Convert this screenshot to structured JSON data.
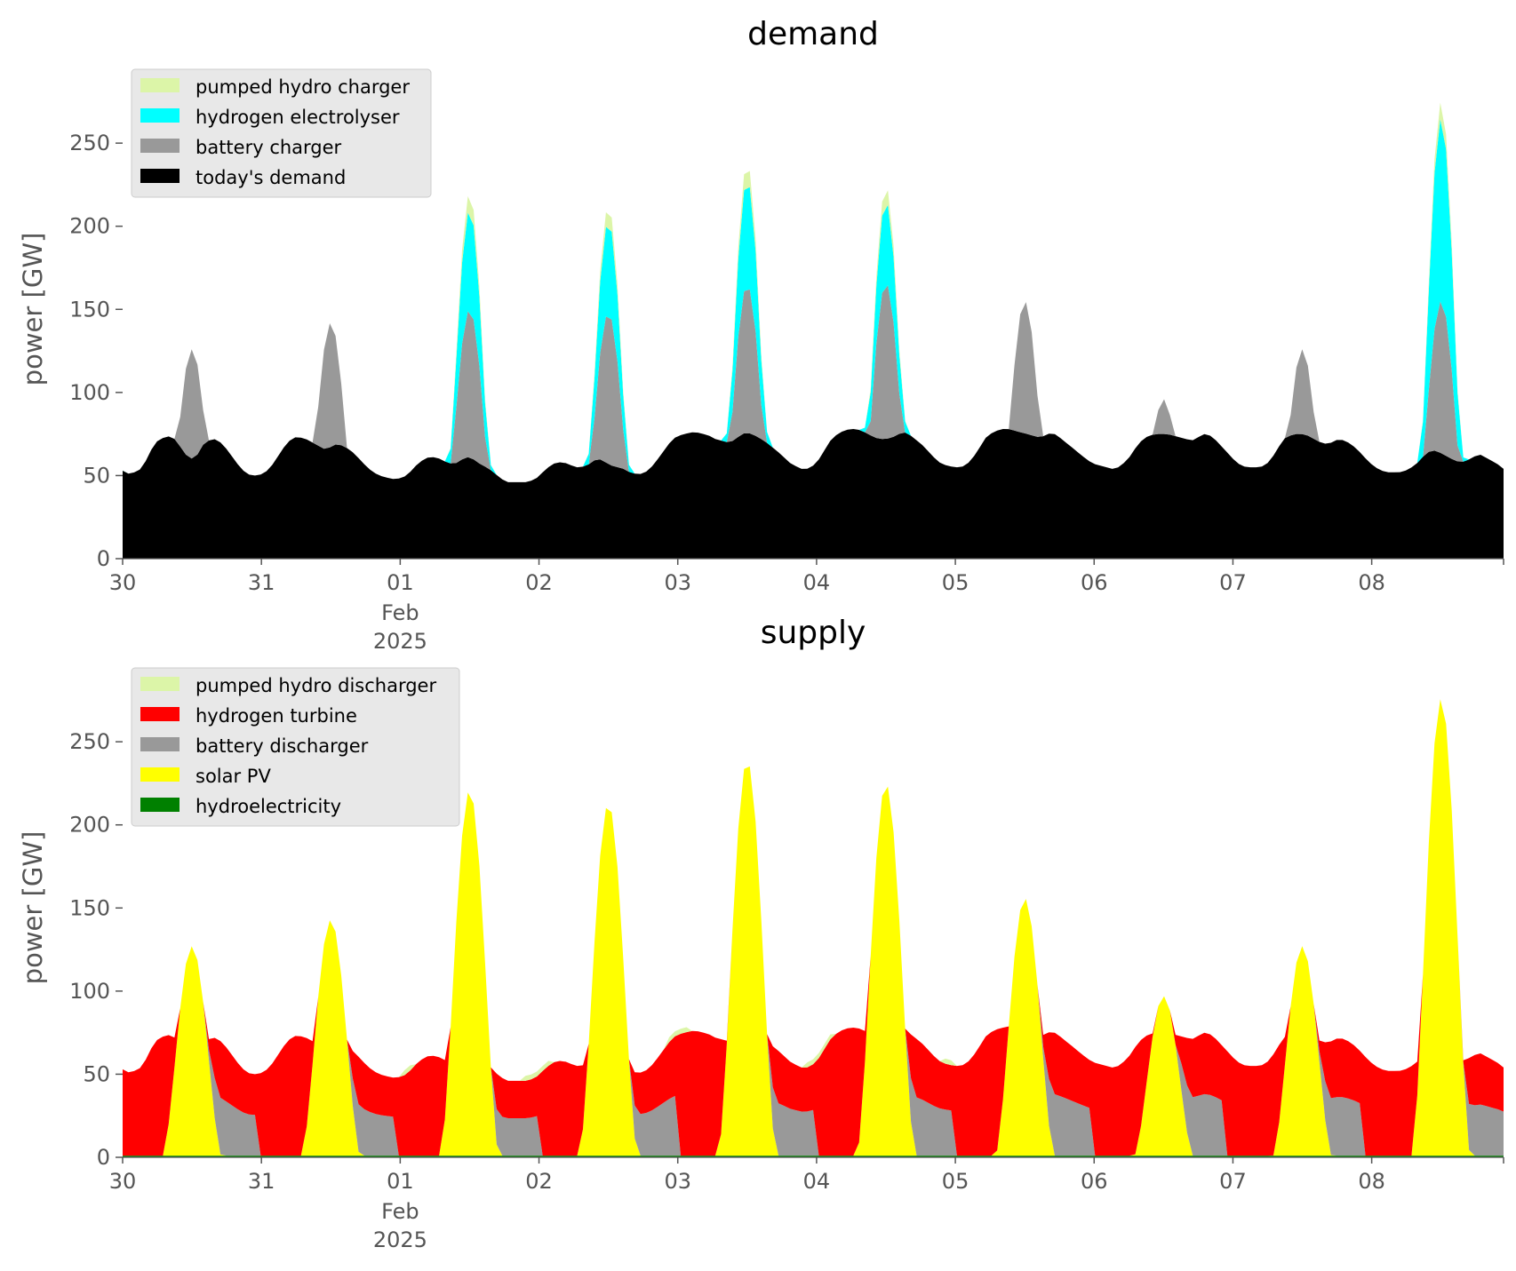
{
  "colors": {
    "pumped_hydro": "#dcf5a8",
    "hydrogen_electrolyser": "#00ffff",
    "battery": "#999999",
    "demand": "#000000",
    "hydrogen_turbine": "#ff0000",
    "solar": "#ffff00",
    "hydroelectricity": "#008000",
    "legend_bg": "#e8e8e8",
    "tick": "#555555"
  },
  "chart_data": [
    {
      "type": "area",
      "title": "demand",
      "ylabel": "power [GW]",
      "xlim": [
        0,
        9.95
      ],
      "ylim": [
        0,
        280
      ],
      "yticks": [
        0,
        50,
        100,
        150,
        200,
        250
      ],
      "xtick_positions": [
        0,
        1,
        2,
        3,
        4,
        5,
        6,
        7,
        8,
        9
      ],
      "xtick_labels": [
        "30",
        "31",
        "01",
        "02",
        "03",
        "04",
        "05",
        "06",
        "07",
        "08"
      ],
      "xtick_sublabel": [
        "Feb",
        "2025"
      ],
      "legend_position": "top-left",
      "legend": [
        "pumped hydro charger",
        "hydrogen electrolyser",
        "battery charger",
        "today's demand"
      ],
      "base_demand": [
        53,
        51,
        52,
        54,
        60,
        68,
        72,
        73,
        74,
        70,
        64,
        60,
        61,
        68,
        71,
        72,
        70,
        66,
        61,
        56,
        52,
        50,
        50,
        51,
        54,
        59,
        65,
        70,
        73,
        73,
        72,
        70,
        68,
        66,
        67,
        69,
        68,
        66,
        63,
        59,
        55,
        52,
        50,
        49,
        48,
        48,
        49,
        52,
        56,
        59,
        61,
        61,
        60,
        58,
        57,
        58,
        61,
        61,
        58,
        56,
        54,
        51,
        48,
        46,
        46,
        46,
        46,
        47,
        49,
        53,
        56,
        58,
        58,
        57,
        55,
        55,
        56,
        59,
        60,
        58,
        56,
        55,
        54,
        52,
        51,
        51,
        53,
        57,
        62,
        67,
        72,
        74,
        75,
        76,
        76,
        75,
        74,
        72,
        71,
        70,
        71,
        74,
        76,
        75,
        73,
        71,
        68,
        65,
        62,
        58,
        56,
        54,
        54,
        56,
        60,
        66,
        72,
        75,
        77,
        78,
        78,
        77,
        75,
        73,
        72,
        72,
        73,
        75,
        76,
        74,
        71,
        68,
        64,
        60,
        57,
        56,
        55,
        55,
        56,
        60,
        65,
        72,
        75,
        77,
        78,
        78,
        77,
        76,
        75,
        74,
        73,
        74,
        76,
        74,
        71,
        68,
        65,
        62,
        59,
        57,
        56,
        55,
        54,
        55,
        58,
        62,
        68,
        72,
        74,
        75,
        75,
        75,
        74,
        73,
        72,
        71,
        73,
        75,
        74,
        71,
        67,
        63,
        59,
        56,
        55,
        55,
        55,
        56,
        60,
        66,
        72,
        74,
        75,
        75,
        74,
        72,
        70,
        69,
        70,
        72,
        71,
        69,
        66,
        62,
        58,
        55,
        53,
        52,
        52,
        52,
        53,
        55,
        58,
        62,
        65,
        65,
        63,
        61,
        59,
        58,
        59,
        61,
        63,
        61,
        59,
        57,
        54
      ],
      "battery_charger_peaks": [
        126,
        142,
        150,
        148,
        165,
        166,
        155,
        96,
        126,
        155
      ],
      "electrolyser_peaks": [
        0,
        0,
        210,
        203,
        228,
        215,
        0,
        0,
        0,
        265
      ],
      "pumped_hydro_peaks": [
        0,
        0,
        220,
        212,
        238,
        224,
        0,
        0,
        0,
        275
      ]
    },
    {
      "type": "area",
      "title": "supply",
      "ylabel": "power [GW]",
      "xlim": [
        0,
        9.95
      ],
      "ylim": [
        0,
        280
      ],
      "yticks": [
        0,
        50,
        100,
        150,
        200,
        250
      ],
      "xtick_positions": [
        0,
        1,
        2,
        3,
        4,
        5,
        6,
        7,
        8,
        9
      ],
      "xtick_labels": [
        "30",
        "31",
        "01",
        "02",
        "03",
        "04",
        "05",
        "06",
        "07",
        "08"
      ],
      "xtick_sublabel": [
        "Feb",
        "2025"
      ],
      "legend_position": "top-left",
      "legend": [
        "pumped hydro discharger",
        "hydrogen turbine",
        "battery discharger",
        "solar PV",
        "hydroelectricity"
      ],
      "solar_peaks": [
        126,
        142,
        220,
        212,
        238,
        224,
        155,
        96,
        126,
        275
      ],
      "battery_discharger_days": [
        {
          "day": 0,
          "from": 0.58,
          "to": 0.99
        },
        {
          "day": 1,
          "from": 0.58,
          "to": 0.95
        },
        {
          "day": 2,
          "from": 0.6,
          "to": 1.0
        },
        {
          "day": 3,
          "from": 0.58,
          "to": 1.0
        },
        {
          "day": 4,
          "from": 0.62,
          "to": 0.99
        },
        {
          "day": 5,
          "from": 0.62,
          "to": 0.98
        },
        {
          "day": 6,
          "from": 0.62,
          "to": 0.98
        },
        {
          "day": 7,
          "from": 0.62,
          "to": 0.95
        },
        {
          "day": 8,
          "from": 0.58,
          "to": 0.95
        },
        {
          "day": 9,
          "from": 0.58,
          "to": 0.95
        }
      ],
      "hydroelectricity_level": 1
    }
  ]
}
